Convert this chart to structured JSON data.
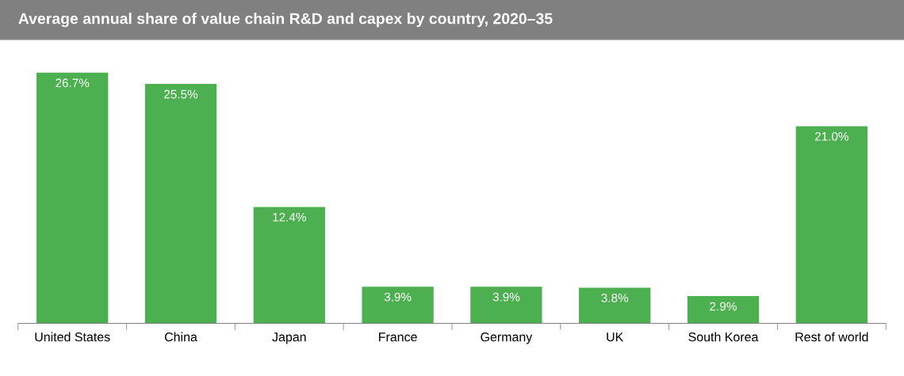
{
  "chart_data": {
    "type": "bar",
    "title": "Average annual share of value chain R&D and capex by country, 2020–35",
    "categories": [
      "United States",
      "China",
      "Japan",
      "France",
      "Germany",
      "UK",
      "South Korea",
      "Rest of world"
    ],
    "values": [
      26.7,
      25.5,
      12.4,
      3.9,
      3.9,
      3.8,
      2.9,
      21.0
    ],
    "value_labels": [
      "26.7%",
      "25.5%",
      "12.4%",
      "3.9%",
      "3.9%",
      "3.8%",
      "2.9%",
      "21.0%"
    ],
    "color": "#4caf50",
    "grid": false,
    "legend": false
  }
}
